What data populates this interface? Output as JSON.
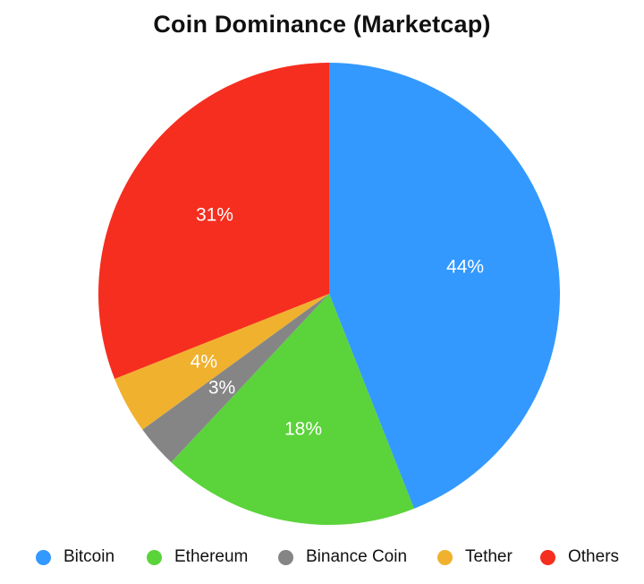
{
  "chart_data": {
    "type": "pie",
    "title": "Coin Dominance (Marketcap)",
    "categories": [
      "Bitcoin",
      "Ethereum",
      "Binance Coin",
      "Tether",
      "Others"
    ],
    "values": [
      44,
      18,
      3,
      4,
      31
    ],
    "value_labels": [
      "44%",
      "18%",
      "3%",
      "4%",
      "31%"
    ],
    "colors": [
      "#3399FF",
      "#5BD33B",
      "#858585",
      "#F0B12E",
      "#F52E1F"
    ],
    "start_angle_deg": 0,
    "direction": "clockwise",
    "legend_position": "bottom"
  }
}
